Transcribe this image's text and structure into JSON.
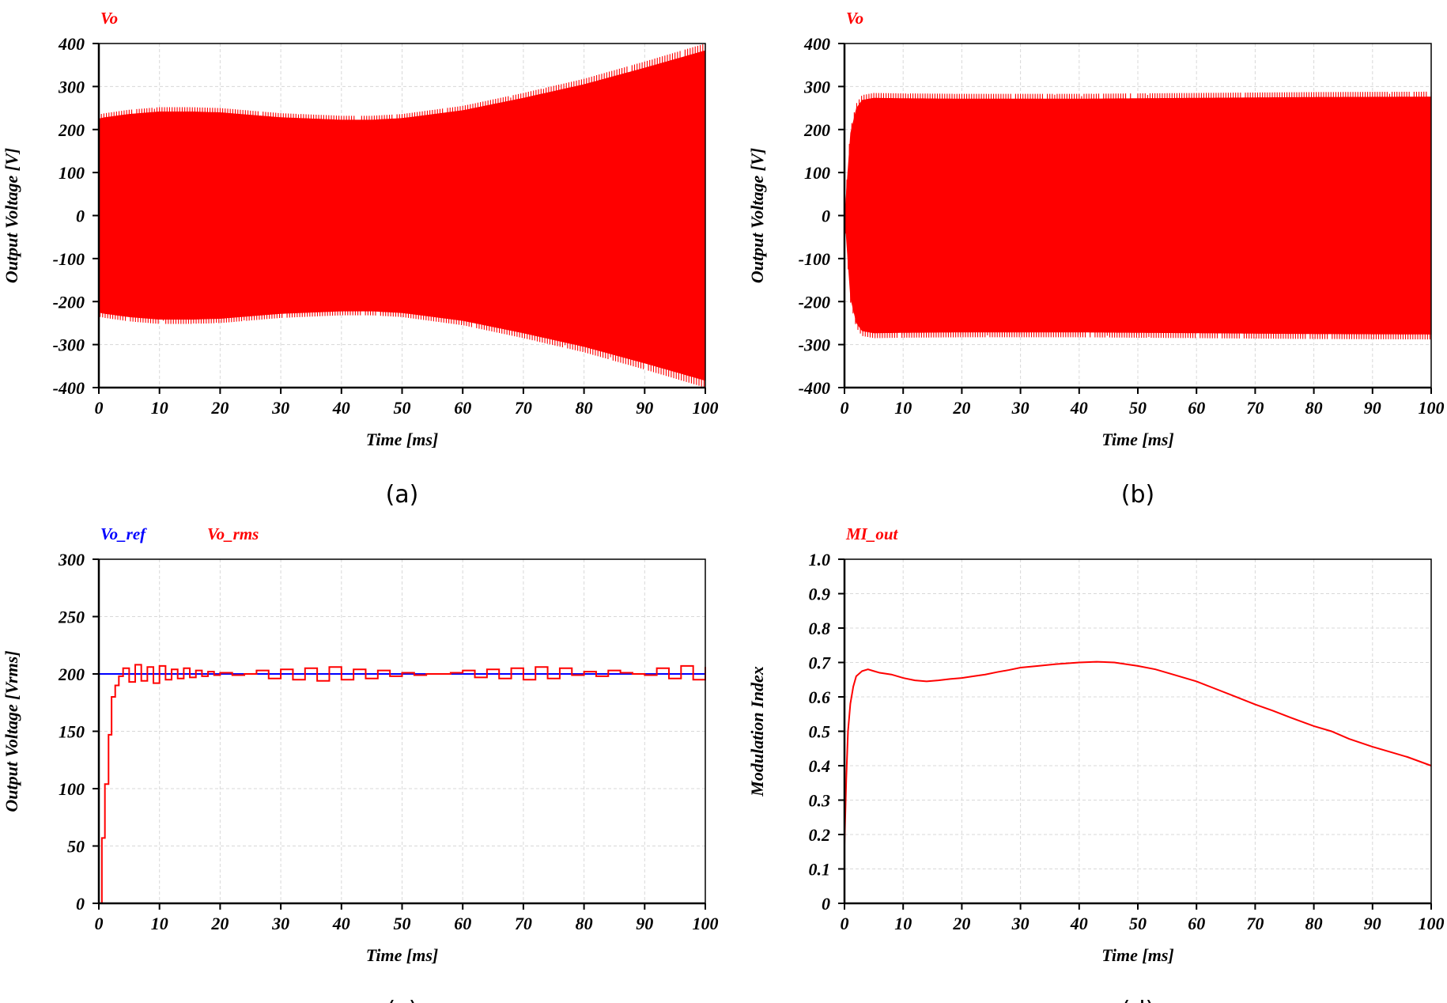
{
  "chart_data": [
    {
      "id": "a",
      "type": "line",
      "caption": "(a)",
      "xlabel": "Time [ms]",
      "ylabel": "Output Voltage [V]",
      "xlim": [
        0,
        100
      ],
      "ylim": [
        -400,
        400
      ],
      "xticks": [
        "0",
        "10",
        "20",
        "30",
        "40",
        "50",
        "60",
        "70",
        "80",
        "90",
        "100"
      ],
      "yticks": [
        "400",
        "300",
        "200",
        "100",
        "0",
        "-100",
        "-200",
        "-300",
        "-400"
      ],
      "series": [
        {
          "name": "Vo",
          "color": "#ff0000",
          "style": "oscillation",
          "envelope": {
            "t": [
              0,
              1,
              5,
              10,
              15,
              20,
              30,
              40,
              45,
              50,
              60,
              70,
              80,
              90,
              100
            ],
            "amplitude": [
              235,
              238,
              246,
              252,
              252,
              250,
              238,
              232,
              232,
              236,
              255,
              285,
              318,
              358,
              400
            ]
          }
        }
      ]
    },
    {
      "id": "b",
      "type": "line",
      "caption": "(b)",
      "xlabel": "Time [ms]",
      "ylabel": "Output Voltage [V]",
      "xlim": [
        0,
        100
      ],
      "ylim": [
        -400,
        400
      ],
      "xticks": [
        "0",
        "10",
        "20",
        "30",
        "40",
        "50",
        "60",
        "70",
        "80",
        "90",
        "100"
      ],
      "yticks": [
        "400",
        "300",
        "200",
        "100",
        "0",
        "-100",
        "-200",
        "-300",
        "-400"
      ],
      "series": [
        {
          "name": "Vo",
          "color": "#ff0000",
          "style": "oscillation",
          "envelope": {
            "t": [
              0,
              1,
              2,
              3,
              5,
              10,
              20,
              40,
              60,
              80,
              100
            ],
            "amplitude": [
              0,
              200,
              260,
              280,
              285,
              284,
              283,
              283,
              285,
              287,
              288
            ]
          }
        }
      ]
    },
    {
      "id": "c",
      "type": "line",
      "caption": "(c)",
      "xlabel": "Time [ms]",
      "ylabel": "Output Voltage [Vrms]",
      "xlim": [
        0,
        100
      ],
      "ylim": [
        0,
        300
      ],
      "xticks": [
        "0",
        "10",
        "20",
        "30",
        "40",
        "50",
        "60",
        "70",
        "80",
        "90",
        "100"
      ],
      "yticks": [
        "300",
        "250",
        "200",
        "150",
        "100",
        "50",
        "0"
      ],
      "series": [
        {
          "name": "Vo_ref",
          "color": "#0000ff",
          "x": [
            0,
            100
          ],
          "y": [
            200,
            200
          ]
        },
        {
          "name": "Vo_rms",
          "color": "#ff0000",
          "style": "step",
          "x": [
            0,
            0.4,
            0.5,
            0.9,
            1.0,
            1.5,
            1.6,
            2.0,
            2.1,
            2.6,
            2.7,
            3.2,
            3.3,
            3.8,
            4.0,
            5,
            6,
            7,
            8,
            9,
            10,
            11,
            12,
            13,
            14,
            15,
            16,
            17,
            18,
            19,
            20,
            22,
            24,
            26,
            28,
            30,
            32,
            34,
            36,
            38,
            40,
            42,
            44,
            46,
            48,
            50,
            52,
            54,
            56,
            58,
            60,
            62,
            64,
            66,
            68,
            70,
            72,
            74,
            76,
            78,
            80,
            82,
            84,
            86,
            88,
            90,
            92,
            94,
            96,
            98,
            100
          ],
          "y": [
            0,
            0,
            57,
            57,
            104,
            104,
            147,
            147,
            180,
            180,
            190,
            190,
            198,
            198,
            205,
            193,
            208,
            194,
            206,
            192,
            207,
            195,
            204,
            196,
            205,
            197,
            203,
            198,
            202,
            199,
            201,
            199,
            200,
            203,
            196,
            204,
            195,
            205,
            194,
            206,
            195,
            204,
            196,
            203,
            198,
            201,
            199,
            200,
            200,
            201,
            203,
            197,
            204,
            196,
            205,
            195,
            206,
            196,
            205,
            199,
            202,
            198,
            203,
            201,
            200,
            199,
            205,
            196,
            207,
            195,
            206
          ]
        }
      ]
    },
    {
      "id": "d",
      "type": "line",
      "caption": "(d)",
      "xlabel": "Time [ms]",
      "ylabel": "Modulation Index",
      "xlim": [
        0,
        100
      ],
      "ylim": [
        0,
        1.0
      ],
      "xticks": [
        "0",
        "10",
        "20",
        "30",
        "40",
        "50",
        "60",
        "70",
        "80",
        "90",
        "100"
      ],
      "yticks": [
        "1.0",
        "0.9",
        "0.8",
        "0.7",
        "0.6",
        "0.5",
        "0.4",
        "0.3",
        "0.2",
        "0.1",
        "0"
      ],
      "series": [
        {
          "name": "MI_out",
          "color": "#ff0000",
          "x": [
            0,
            0.3,
            0.6,
            1,
            1.5,
            2,
            3,
            4,
            5,
            6,
            8,
            10,
            12,
            14,
            16,
            18,
            20,
            22,
            24,
            26,
            28,
            30,
            33,
            36,
            40,
            43,
            46,
            50,
            53,
            56,
            60,
            63,
            66,
            70,
            73,
            76,
            80,
            83,
            86,
            90,
            93,
            96,
            100
          ],
          "y": [
            0.17,
            0.36,
            0.5,
            0.58,
            0.63,
            0.66,
            0.675,
            0.68,
            0.675,
            0.67,
            0.665,
            0.655,
            0.648,
            0.645,
            0.648,
            0.652,
            0.655,
            0.66,
            0.665,
            0.672,
            0.678,
            0.685,
            0.69,
            0.695,
            0.7,
            0.702,
            0.7,
            0.69,
            0.68,
            0.665,
            0.645,
            0.625,
            0.605,
            0.578,
            0.56,
            0.54,
            0.515,
            0.5,
            0.478,
            0.455,
            0.44,
            0.425,
            0.4
          ]
        }
      ]
    }
  ]
}
